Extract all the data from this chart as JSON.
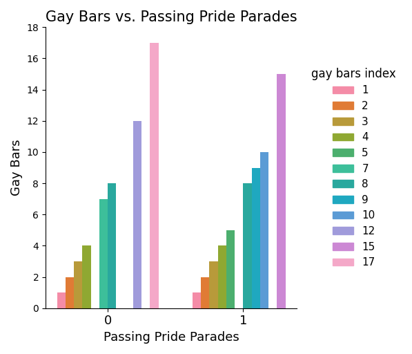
{
  "title": "Gay Bars vs. Passing Pride Parades",
  "xlabel": "Passing Pride Parades",
  "ylabel": "Gay Bars",
  "legend_title": "gay bars index",
  "x_categories": [
    0,
    1
  ],
  "series": [
    {
      "label": "1",
      "values": [
        1,
        1
      ],
      "color": "#f48ca7"
    },
    {
      "label": "2",
      "values": [
        2,
        2
      ],
      "color": "#e07b35"
    },
    {
      "label": "3",
      "values": [
        3,
        3
      ],
      "color": "#b89a3a"
    },
    {
      "label": "4",
      "values": [
        4,
        4
      ],
      "color": "#8fa832"
    },
    {
      "label": "5",
      "values": [
        null,
        5
      ],
      "color": "#4caf6e"
    },
    {
      "label": "7",
      "values": [
        7,
        null
      ],
      "color": "#3dbf9a"
    },
    {
      "label": "8",
      "values": [
        8,
        8
      ],
      "color": "#29a89e"
    },
    {
      "label": "9",
      "values": [
        null,
        9
      ],
      "color": "#1fa8c0"
    },
    {
      "label": "10",
      "values": [
        null,
        10
      ],
      "color": "#5b9bd5"
    },
    {
      "label": "12",
      "values": [
        12,
        null
      ],
      "color": "#a09bdb"
    },
    {
      "label": "15",
      "values": [
        null,
        15
      ],
      "color": "#cc88d4"
    },
    {
      "label": "17",
      "values": [
        17,
        null
      ],
      "color": "#f4a8c8"
    }
  ],
  "ylim": [
    0,
    18
  ],
  "figsize": [
    5.97,
    5.12
  ],
  "dpi": 100
}
